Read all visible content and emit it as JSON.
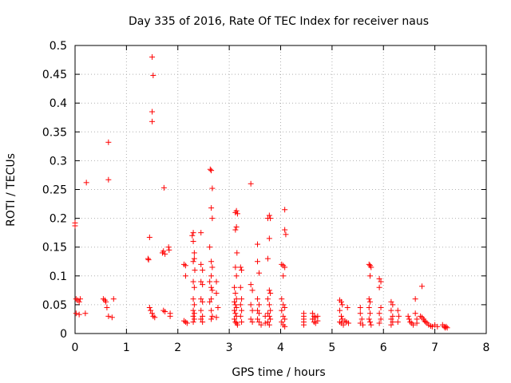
{
  "chart_data": {
    "type": "scatter",
    "title": "Day 335 of 2016, Rate Of TEC Index for receiver naus",
    "xlabel": "GPS time / hours",
    "ylabel": "ROTI / TECUs",
    "xlim": [
      0,
      8
    ],
    "ylim": [
      0,
      0.5
    ],
    "xticks": [
      0,
      1,
      2,
      3,
      4,
      5,
      6,
      7,
      8
    ],
    "xtick_labels": [
      "0",
      "1",
      "2",
      "3",
      "4",
      "5",
      "6",
      "7",
      "8"
    ],
    "yticks": [
      0,
      0.05,
      0.1,
      0.15,
      0.2,
      0.25,
      0.3,
      0.35,
      0.4,
      0.45,
      0.5
    ],
    "ytick_labels": [
      "0",
      "0.05",
      "0.1",
      "0.15",
      "0.2",
      "0.25",
      "0.3",
      "0.35",
      "0.4",
      "0.45",
      "0.5"
    ],
    "grid": true,
    "marker": "+",
    "color": "#ff0000",
    "series": [
      {
        "name": "ROTI",
        "points": [
          [
            0.0,
            0.192
          ],
          [
            0.0,
            0.187
          ],
          [
            0.02,
            0.06
          ],
          [
            0.05,
            0.058
          ],
          [
            0.08,
            0.055
          ],
          [
            0.1,
            0.06
          ],
          [
            0.02,
            0.035
          ],
          [
            0.08,
            0.033
          ],
          [
            0.2,
            0.035
          ],
          [
            0.22,
            0.262
          ],
          [
            0.55,
            0.06
          ],
          [
            0.58,
            0.058
          ],
          [
            0.6,
            0.055
          ],
          [
            0.62,
            0.045
          ],
          [
            0.65,
            0.03
          ],
          [
            0.72,
            0.028
          ],
          [
            0.65,
            0.332
          ],
          [
            0.65,
            0.267
          ],
          [
            0.75,
            0.06
          ],
          [
            1.42,
            0.13
          ],
          [
            1.43,
            0.128
          ],
          [
            1.45,
            0.167
          ],
          [
            1.45,
            0.045
          ],
          [
            1.47,
            0.04
          ],
          [
            1.5,
            0.035
          ],
          [
            1.52,
            0.03
          ],
          [
            1.55,
            0.028
          ],
          [
            1.5,
            0.48
          ],
          [
            1.52,
            0.448
          ],
          [
            1.5,
            0.385
          ],
          [
            1.5,
            0.368
          ],
          [
            1.7,
            0.14
          ],
          [
            1.72,
            0.143
          ],
          [
            1.75,
            0.138
          ],
          [
            1.72,
            0.04
          ],
          [
            1.75,
            0.038
          ],
          [
            1.73,
            0.253
          ],
          [
            1.82,
            0.15
          ],
          [
            1.83,
            0.145
          ],
          [
            1.85,
            0.035
          ],
          [
            1.85,
            0.03
          ],
          [
            2.12,
            0.12
          ],
          [
            2.15,
            0.118
          ],
          [
            2.15,
            0.1
          ],
          [
            2.12,
            0.022
          ],
          [
            2.15,
            0.02
          ],
          [
            2.18,
            0.018
          ],
          [
            2.28,
            0.17
          ],
          [
            2.3,
            0.175
          ],
          [
            2.3,
            0.16
          ],
          [
            2.32,
            0.14
          ],
          [
            2.32,
            0.13
          ],
          [
            2.3,
            0.125
          ],
          [
            2.33,
            0.11
          ],
          [
            2.3,
            0.09
          ],
          [
            2.32,
            0.08
          ],
          [
            2.3,
            0.06
          ],
          [
            2.32,
            0.05
          ],
          [
            2.3,
            0.04
          ],
          [
            2.32,
            0.035
          ],
          [
            2.3,
            0.03
          ],
          [
            2.32,
            0.025
          ],
          [
            2.3,
            0.02
          ],
          [
            2.45,
            0.175
          ],
          [
            2.45,
            0.12
          ],
          [
            2.48,
            0.11
          ],
          [
            2.45,
            0.09
          ],
          [
            2.48,
            0.085
          ],
          [
            2.45,
            0.06
          ],
          [
            2.48,
            0.055
          ],
          [
            2.45,
            0.04
          ],
          [
            2.48,
            0.03
          ],
          [
            2.45,
            0.025
          ],
          [
            2.48,
            0.02
          ],
          [
            2.63,
            0.285
          ],
          [
            2.65,
            0.283
          ],
          [
            2.67,
            0.252
          ],
          [
            2.65,
            0.218
          ],
          [
            2.67,
            0.2
          ],
          [
            2.62,
            0.15
          ],
          [
            2.65,
            0.125
          ],
          [
            2.67,
            0.115
          ],
          [
            2.65,
            0.1
          ],
          [
            2.62,
            0.09
          ],
          [
            2.65,
            0.08
          ],
          [
            2.67,
            0.075
          ],
          [
            2.65,
            0.06
          ],
          [
            2.62,
            0.055
          ],
          [
            2.65,
            0.04
          ],
          [
            2.67,
            0.03
          ],
          [
            2.65,
            0.025
          ],
          [
            2.75,
            0.09
          ],
          [
            2.75,
            0.07
          ],
          [
            2.78,
            0.045
          ],
          [
            2.75,
            0.028
          ],
          [
            3.12,
            0.21
          ],
          [
            3.14,
            0.213
          ],
          [
            3.16,
            0.208
          ],
          [
            3.14,
            0.185
          ],
          [
            3.12,
            0.18
          ],
          [
            3.15,
            0.14
          ],
          [
            3.12,
            0.115
          ],
          [
            3.14,
            0.1
          ],
          [
            3.1,
            0.08
          ],
          [
            3.12,
            0.07
          ],
          [
            3.14,
            0.06
          ],
          [
            3.1,
            0.055
          ],
          [
            3.12,
            0.05
          ],
          [
            3.14,
            0.045
          ],
          [
            3.1,
            0.04
          ],
          [
            3.12,
            0.035
          ],
          [
            3.14,
            0.03
          ],
          [
            3.1,
            0.025
          ],
          [
            3.12,
            0.02
          ],
          [
            3.14,
            0.018
          ],
          [
            3.16,
            0.015
          ],
          [
            3.22,
            0.115
          ],
          [
            3.24,
            0.11
          ],
          [
            3.22,
            0.08
          ],
          [
            3.24,
            0.06
          ],
          [
            3.22,
            0.05
          ],
          [
            3.24,
            0.04
          ],
          [
            3.22,
            0.03
          ],
          [
            3.24,
            0.02
          ],
          [
            3.42,
            0.26
          ],
          [
            3.42,
            0.085
          ],
          [
            3.45,
            0.075
          ],
          [
            3.42,
            0.05
          ],
          [
            3.45,
            0.04
          ],
          [
            3.42,
            0.025
          ],
          [
            3.45,
            0.02
          ],
          [
            3.55,
            0.155
          ],
          [
            3.55,
            0.125
          ],
          [
            3.58,
            0.105
          ],
          [
            3.55,
            0.06
          ],
          [
            3.58,
            0.05
          ],
          [
            3.55,
            0.04
          ],
          [
            3.58,
            0.035
          ],
          [
            3.55,
            0.025
          ],
          [
            3.58,
            0.02
          ],
          [
            3.62,
            0.015
          ],
          [
            3.75,
            0.2
          ],
          [
            3.78,
            0.205
          ],
          [
            3.8,
            0.2
          ],
          [
            3.78,
            0.165
          ],
          [
            3.75,
            0.13
          ],
          [
            3.78,
            0.075
          ],
          [
            3.8,
            0.07
          ],
          [
            3.75,
            0.06
          ],
          [
            3.78,
            0.05
          ],
          [
            3.8,
            0.04
          ],
          [
            3.75,
            0.035
          ],
          [
            3.78,
            0.03
          ],
          [
            3.8,
            0.025
          ],
          [
            3.75,
            0.02
          ],
          [
            3.78,
            0.015
          ],
          [
            3.7,
            0.03
          ],
          [
            3.7,
            0.018
          ],
          [
            4.02,
            0.12
          ],
          [
            4.05,
            0.118
          ],
          [
            4.08,
            0.115
          ],
          [
            4.05,
            0.1
          ],
          [
            4.08,
            0.215
          ],
          [
            4.08,
            0.18
          ],
          [
            4.1,
            0.172
          ],
          [
            4.02,
            0.06
          ],
          [
            4.05,
            0.05
          ],
          [
            4.08,
            0.045
          ],
          [
            4.02,
            0.04
          ],
          [
            4.05,
            0.03
          ],
          [
            4.08,
            0.025
          ],
          [
            4.02,
            0.02
          ],
          [
            4.05,
            0.015
          ],
          [
            4.08,
            0.012
          ],
          [
            4.45,
            0.035
          ],
          [
            4.45,
            0.03
          ],
          [
            4.45,
            0.025
          ],
          [
            4.45,
            0.02
          ],
          [
            4.45,
            0.015
          ],
          [
            4.62,
            0.035
          ],
          [
            4.65,
            0.03
          ],
          [
            4.68,
            0.028
          ],
          [
            4.62,
            0.025
          ],
          [
            4.65,
            0.02
          ],
          [
            4.68,
            0.018
          ],
          [
            4.72,
            0.03
          ],
          [
            4.72,
            0.022
          ],
          [
            5.15,
            0.058
          ],
          [
            5.18,
            0.055
          ],
          [
            5.2,
            0.05
          ],
          [
            5.15,
            0.04
          ],
          [
            5.18,
            0.03
          ],
          [
            5.2,
            0.025
          ],
          [
            5.15,
            0.02
          ],
          [
            5.18,
            0.018
          ],
          [
            5.22,
            0.015
          ],
          [
            5.25,
            0.022
          ],
          [
            5.28,
            0.02
          ],
          [
            5.3,
            0.045
          ],
          [
            5.32,
            0.018
          ],
          [
            5.55,
            0.045
          ],
          [
            5.55,
            0.035
          ],
          [
            5.58,
            0.025
          ],
          [
            5.55,
            0.018
          ],
          [
            5.6,
            0.015
          ],
          [
            5.72,
            0.12
          ],
          [
            5.74,
            0.118
          ],
          [
            5.76,
            0.115
          ],
          [
            5.74,
            0.1
          ],
          [
            5.72,
            0.06
          ],
          [
            5.74,
            0.055
          ],
          [
            5.72,
            0.045
          ],
          [
            5.74,
            0.035
          ],
          [
            5.72,
            0.025
          ],
          [
            5.74,
            0.02
          ],
          [
            5.76,
            0.015
          ],
          [
            5.92,
            0.095
          ],
          [
            5.95,
            0.09
          ],
          [
            5.92,
            0.08
          ],
          [
            5.95,
            0.045
          ],
          [
            5.92,
            0.035
          ],
          [
            5.95,
            0.025
          ],
          [
            5.92,
            0.018
          ],
          [
            6.15,
            0.055
          ],
          [
            6.18,
            0.05
          ],
          [
            6.15,
            0.04
          ],
          [
            6.18,
            0.03
          ],
          [
            6.15,
            0.025
          ],
          [
            6.18,
            0.02
          ],
          [
            6.15,
            0.015
          ],
          [
            6.28,
            0.04
          ],
          [
            6.3,
            0.03
          ],
          [
            6.28,
            0.02
          ],
          [
            6.48,
            0.03
          ],
          [
            6.5,
            0.025
          ],
          [
            6.52,
            0.02
          ],
          [
            6.55,
            0.018
          ],
          [
            6.58,
            0.015
          ],
          [
            6.62,
            0.06
          ],
          [
            6.62,
            0.035
          ],
          [
            6.65,
            0.025
          ],
          [
            6.65,
            0.018
          ],
          [
            6.75,
            0.082
          ],
          [
            6.72,
            0.03
          ],
          [
            6.75,
            0.028
          ],
          [
            6.78,
            0.025
          ],
          [
            6.8,
            0.022
          ],
          [
            6.82,
            0.02
          ],
          [
            6.85,
            0.018
          ],
          [
            6.88,
            0.015
          ],
          [
            6.92,
            0.013
          ],
          [
            6.95,
            0.012
          ],
          [
            7.0,
            0.015
          ],
          [
            7.05,
            0.012
          ],
          [
            7.15,
            0.015
          ],
          [
            7.18,
            0.012
          ],
          [
            7.2,
            0.01
          ],
          [
            7.22,
            0.012
          ],
          [
            7.24,
            0.01
          ]
        ]
      }
    ]
  }
}
